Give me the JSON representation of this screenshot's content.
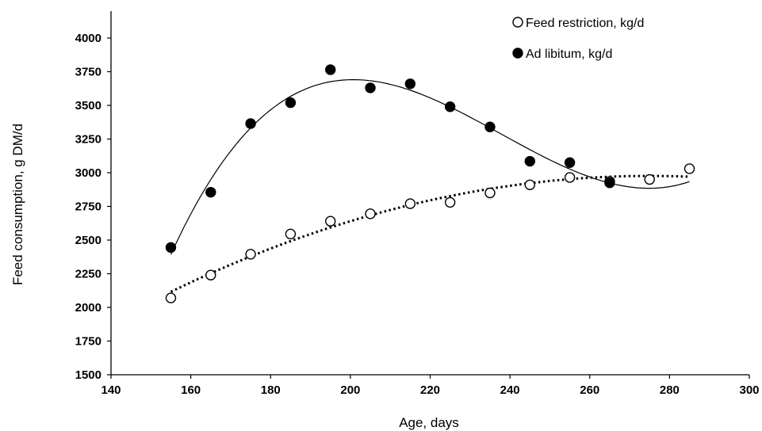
{
  "chart_data": {
    "type": "scatter",
    "title": "",
    "xlabel": "Age, days",
    "ylabel": "Feed consumption, g DM/d",
    "xlim": [
      140,
      300
    ],
    "ylim": [
      1500,
      4000
    ],
    "x_ticks": [
      "140",
      "160",
      "180",
      "200",
      "220",
      "240",
      "260",
      "280",
      "300"
    ],
    "y_ticks": [
      "1500",
      "1750",
      "2000",
      "2250",
      "2500",
      "2750",
      "3000",
      "3250",
      "3500",
      "3750",
      "4000"
    ],
    "legend_position": "top-right",
    "grid": false,
    "series": [
      {
        "name": "Feed restriction, kg/d",
        "marker": "open-circle",
        "trendline": "dotted",
        "x": [
          155,
          165,
          175,
          185,
          195,
          205,
          215,
          225,
          235,
          245,
          255,
          265,
          275,
          285
        ],
        "y": [
          2070,
          2240,
          2395,
          2545,
          2640,
          2695,
          2770,
          2780,
          2850,
          2910,
          2965,
          2935,
          2950,
          3030
        ]
      },
      {
        "name": "Ad libitum, kg/d",
        "marker": "filled-circle",
        "trendline": "solid",
        "x": [
          155,
          165,
          175,
          185,
          195,
          205,
          215,
          225,
          235,
          245,
          255,
          265
        ],
        "y": [
          2445,
          2855,
          3365,
          3520,
          3765,
          3630,
          3660,
          3490,
          3340,
          3085,
          3075,
          2925
        ]
      }
    ],
    "colors": {
      "axis": "#000000",
      "marker": "#000000",
      "background": "#ffffff"
    }
  }
}
